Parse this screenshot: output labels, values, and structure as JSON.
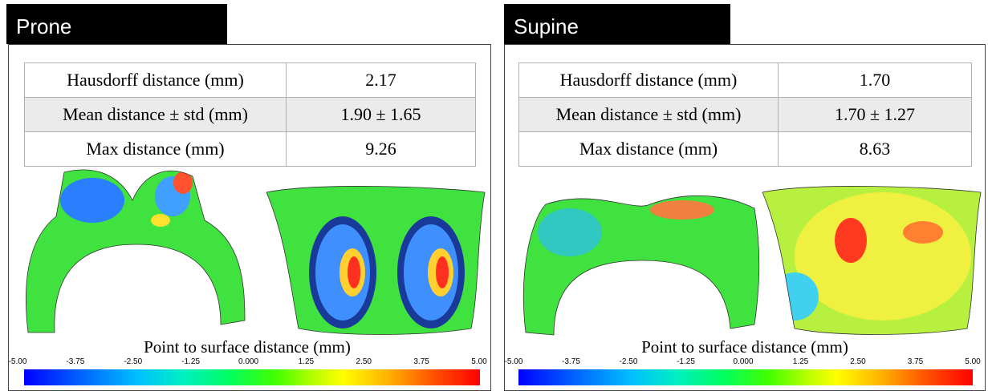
{
  "panels": [
    {
      "title": "Prone",
      "table": [
        [
          "Hausdorff distance (mm)",
          "2.17"
        ],
        [
          "Mean distance ±  std (mm)",
          "1.90 ± 1.65"
        ],
        [
          "Max distance (mm)",
          "9.26"
        ]
      ],
      "colorbar_label": "Point to surface distance (mm)",
      "colorbar_ticks": [
        "-5.00",
        "-3.75",
        "-2.50",
        "-1.25",
        "0.000",
        "1.25",
        "2.50",
        "3.75",
        "5.00"
      ]
    },
    {
      "title": "Supine",
      "table": [
        [
          "Hausdorff distance (mm)",
          "1.70"
        ],
        [
          "Mean distance ± std (mm)",
          "1.70 ± 1.27"
        ],
        [
          "Max distance (mm)",
          "8.63"
        ]
      ],
      "colorbar_label": "Point to surface distance (mm)",
      "colorbar_ticks": [
        "-5.00",
        "-3.75",
        "-2.50",
        "-1.25",
        "0.000",
        "1.25",
        "2.50",
        "3.75",
        "5.00"
      ]
    }
  ]
}
